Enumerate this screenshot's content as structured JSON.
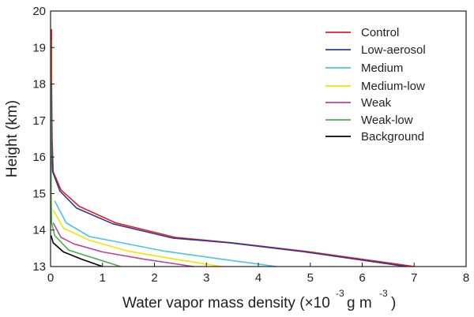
{
  "chart_data": {
    "type": "line",
    "title": "",
    "xlabel": {
      "main": "Water vapor mass density (×10",
      "exp1": "-3",
      "mid": "g m",
      "exp2": "-3",
      "close": ")"
    },
    "ylabel": "Height (km)",
    "xlim": [
      0,
      8
    ],
    "ylim": [
      13,
      20
    ],
    "xticks": [
      "0",
      "1",
      "2",
      "3",
      "4",
      "5",
      "6",
      "7",
      "8"
    ],
    "yticks": [
      "13",
      "14",
      "15",
      "16",
      "17",
      "18",
      "19",
      "20"
    ],
    "legend_position": "top-right",
    "grid": false,
    "series": [
      {
        "name": "Control",
        "color": "#e31e24",
        "points": [
          [
            7.0,
            13.0
          ],
          [
            5.0,
            13.4
          ],
          [
            3.5,
            13.65
          ],
          [
            2.4,
            13.8
          ],
          [
            1.25,
            14.2
          ],
          [
            0.55,
            14.65
          ],
          [
            0.2,
            15.1
          ],
          [
            0.05,
            15.6
          ],
          [
            0.03,
            16.5
          ],
          [
            0.02,
            18.0
          ],
          [
            0.02,
            19.5
          ]
        ]
      },
      {
        "name": "Low-aerosol",
        "color": "#2e3b8f",
        "points": [
          [
            6.85,
            13.0
          ],
          [
            4.9,
            13.4
          ],
          [
            3.45,
            13.65
          ],
          [
            2.35,
            13.78
          ],
          [
            1.2,
            14.17
          ],
          [
            0.5,
            14.6
          ],
          [
            0.18,
            15.07
          ],
          [
            0.04,
            15.6
          ],
          [
            0.02,
            16.5
          ],
          [
            0.015,
            18.0
          ]
        ]
      },
      {
        "name": "Medium",
        "color": "#4ec3e0",
        "points": [
          [
            4.35,
            13.0
          ],
          [
            3.3,
            13.2
          ],
          [
            2.2,
            13.42
          ],
          [
            1.2,
            13.7
          ],
          [
            0.75,
            13.82
          ],
          [
            0.3,
            14.2
          ],
          [
            0.08,
            14.8
          ]
        ]
      },
      {
        "name": "Medium-low",
        "color": "#f2e600",
        "points": [
          [
            3.3,
            13.0
          ],
          [
            2.4,
            13.2
          ],
          [
            1.5,
            13.42
          ],
          [
            0.75,
            13.72
          ],
          [
            0.25,
            14.05
          ],
          [
            0.05,
            14.55
          ]
        ]
      },
      {
        "name": "Weak",
        "color": "#b5479b",
        "points": [
          [
            2.75,
            13.0
          ],
          [
            1.8,
            13.2
          ],
          [
            1.0,
            13.4
          ],
          [
            0.45,
            13.62
          ],
          [
            0.2,
            13.8
          ],
          [
            0.05,
            14.2
          ]
        ]
      },
      {
        "name": "Weak-low",
        "color": "#4caf4f",
        "points": [
          [
            1.35,
            13.0
          ],
          [
            0.9,
            13.2
          ],
          [
            0.35,
            13.45
          ],
          [
            0.08,
            13.85
          ],
          [
            0.02,
            14.2
          ],
          [
            0.01,
            15.0
          ],
          [
            0.01,
            16.5
          ],
          [
            0.005,
            18.0
          ],
          [
            0.005,
            19.2
          ]
        ]
      },
      {
        "name": "Background",
        "color": "#000000",
        "points": [
          [
            1.0,
            13.0
          ],
          [
            0.6,
            13.2
          ],
          [
            0.25,
            13.4
          ],
          [
            0.05,
            13.65
          ],
          [
            0.01,
            13.85
          ]
        ]
      }
    ]
  }
}
